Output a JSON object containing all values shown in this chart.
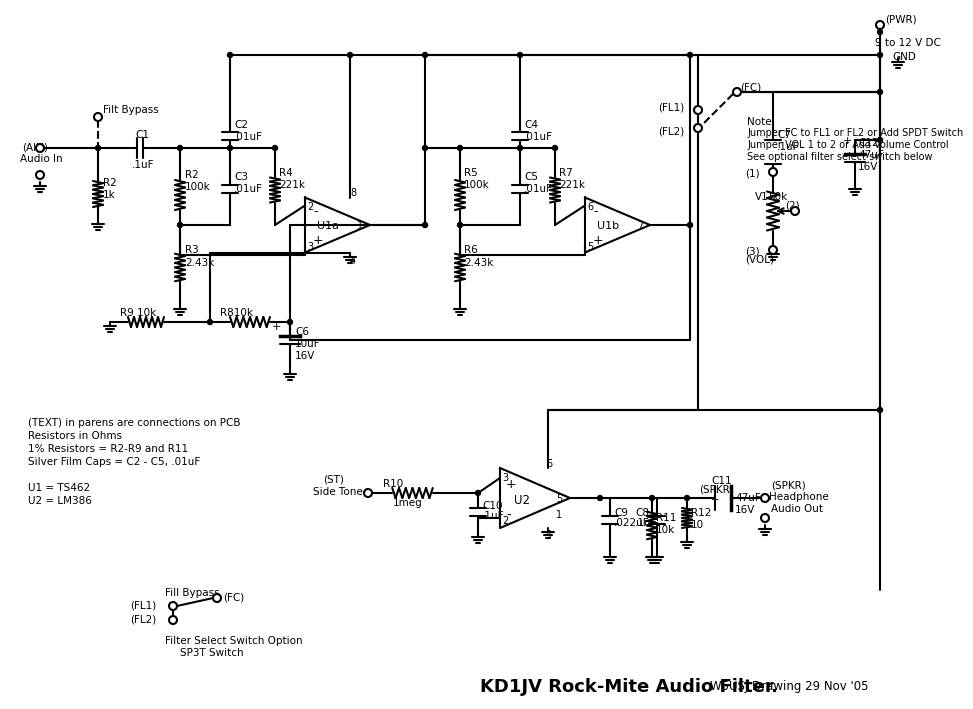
{
  "title": "KD1JV Rock-Mite Audio Filter",
  "subtitle": "W5USJ Drawing 29 Nov '05",
  "bg_color": "#ffffff",
  "line_color": "#000000",
  "notes": [
    "(TEXT) in parens are connections on PCB",
    "Resistors in Ohms",
    "1% Resistors = R2-R9 and R11",
    "Silver Film Caps = C2 - C5, .01uF",
    "",
    "U1 = TS462",
    "U2 = LM386"
  ],
  "filter_note": [
    "Note:",
    "Jumper FC to FL1 or FL2 or Add SPDT Switch",
    "Jumper VOL 1 to 2 or Add Volume Control",
    "See optional filter select switch below"
  ]
}
